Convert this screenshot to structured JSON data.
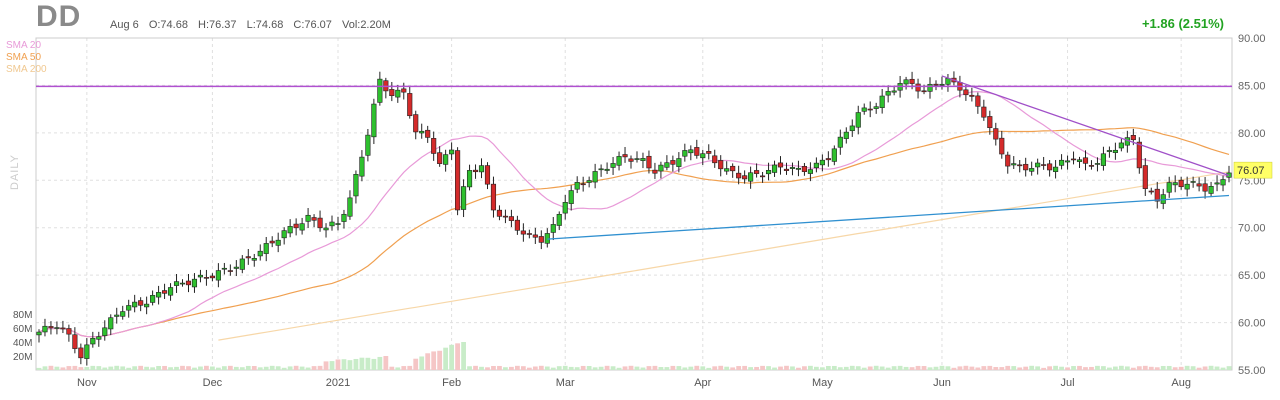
{
  "header": {
    "ticker": "DD",
    "date": "Aug 6",
    "open": "O:74.68",
    "high": "H:76.37",
    "low": "L:74.68",
    "close": "C:76.07",
    "volume": "Vol:2.20M",
    "change": "+1.86 (2.51%)",
    "period": "DAILY"
  },
  "legend": [
    {
      "name": "SMA 20",
      "color": "#e89ad8"
    },
    {
      "name": "SMA 50",
      "color": "#f0a050"
    },
    {
      "name": "SMA 200",
      "color": "#f7d7a8"
    }
  ],
  "colors": {
    "up": "#2ec02e",
    "down": "#d42a2a",
    "hline": "#b050d0",
    "trend_down": "#a050c8",
    "trend_up": "#3090d0",
    "last_price_bg": "#ffff66"
  },
  "chart_data": {
    "type": "candlestick",
    "yaxis_side": "right",
    "ylim": [
      55,
      90
    ],
    "yticks": [
      "90.00",
      "85.00",
      "80.00",
      "75.00",
      "70.00",
      "65.00",
      "60.00",
      "55.00"
    ],
    "volume_ticks": [
      "80M",
      "60M",
      "40M",
      "20M"
    ],
    "volume_max_m": 100,
    "months": [
      {
        "label": "Nov",
        "index": 8
      },
      {
        "label": "Dec",
        "index": 29
      },
      {
        "label": "2021",
        "index": 50
      },
      {
        "label": "Feb",
        "index": 69
      },
      {
        "label": "Mar",
        "index": 88
      },
      {
        "label": "Apr",
        "index": 111
      },
      {
        "label": "May",
        "index": 131
      },
      {
        "label": "Jun",
        "index": 151
      },
      {
        "label": "Jul",
        "index": 172
      },
      {
        "label": "Aug",
        "index": 191
      }
    ],
    "last_price": "76.07",
    "horizontal_line": 84.9,
    "trendline_down": [
      [
        151,
        86.0
      ],
      [
        199,
        75.5
      ]
    ],
    "trendline_up": [
      [
        85,
        68.8
      ],
      [
        199,
        73.4
      ]
    ],
    "n": 200
  }
}
